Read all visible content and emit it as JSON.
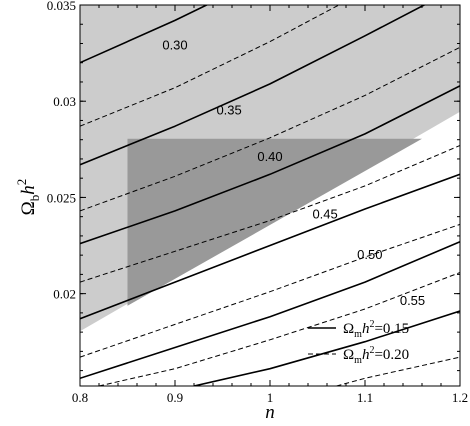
{
  "chart_data": {
    "type": "line",
    "xlabel": "n",
    "ylabel": "Ωbh2",
    "xlim": [
      0.8,
      1.2
    ],
    "ylim": [
      0.0152,
      0.035
    ],
    "x_ticks": [
      {
        "value": 0.8,
        "label": "0.8"
      },
      {
        "value": 0.9,
        "label": "0.9"
      },
      {
        "value": 1.0,
        "label": "1"
      },
      {
        "value": 1.1,
        "label": "1.1"
      },
      {
        "value": 1.2,
        "label": "1.2"
      }
    ],
    "y_ticks": [
      {
        "value": 0.02,
        "label": "0.02"
      },
      {
        "value": 0.025,
        "label": "0.025"
      },
      {
        "value": 0.03,
        "label": "0.03"
      },
      {
        "value": 0.035,
        "label": "0.035"
      }
    ],
    "regions": [
      {
        "name": "light-excluded-region",
        "color": "#cccccc",
        "points": [
          [
            0.8,
            0.035
          ],
          [
            1.2,
            0.035
          ],
          [
            1.2,
            0.02945
          ],
          [
            0.8,
            0.01805
          ]
        ]
      },
      {
        "name": "dark-excluded-region",
        "color": "#999999",
        "points": [
          [
            0.85,
            0.02805
          ],
          [
            1.16,
            0.02805
          ],
          [
            0.85,
            0.01937
          ]
        ]
      }
    ],
    "series": [
      {
        "name": "Ωmh2=0.15",
        "style": "solid",
        "values": [
          [
            0.8,
            0.032
          ],
          [
            0.9,
            0.0342
          ],
          [
            0.95,
            0.0354
          ]
        ]
      },
      {
        "name": "Ωmh2=0.20",
        "style": "dashed",
        "values": [
          [
            0.8,
            0.0287
          ],
          [
            0.9,
            0.0307
          ],
          [
            1.0,
            0.0331
          ],
          [
            1.08,
            0.0352
          ]
        ]
      },
      {
        "name": "Ωmh2=0.15",
        "style": "solid",
        "values": [
          [
            0.8,
            0.0267
          ],
          [
            0.9,
            0.0287
          ],
          [
            1.0,
            0.0309
          ],
          [
            1.1,
            0.0334
          ],
          [
            1.17,
            0.0352
          ]
        ]
      },
      {
        "name": "Ωmh2=0.20",
        "style": "dashed",
        "values": [
          [
            0.8,
            0.0243
          ],
          [
            0.9,
            0.0261
          ],
          [
            1.0,
            0.0281
          ],
          [
            1.1,
            0.0303
          ],
          [
            1.2,
            0.0328
          ]
        ]
      },
      {
        "name": "Ωmh2=0.15",
        "style": "solid",
        "values": [
          [
            0.8,
            0.0226
          ],
          [
            0.9,
            0.0243
          ],
          [
            1.0,
            0.0262
          ],
          [
            1.1,
            0.0283
          ],
          [
            1.2,
            0.0308
          ]
        ]
      },
      {
        "name": "Ωmh2=0.20",
        "style": "dashed",
        "values": [
          [
            0.8,
            0.0206
          ],
          [
            0.9,
            0.0222
          ],
          [
            1.0,
            0.0238
          ],
          [
            1.1,
            0.0256
          ],
          [
            1.2,
            0.0277
          ]
        ]
      },
      {
        "name": "Ωmh2=0.15",
        "style": "solid",
        "values": [
          [
            0.8,
            0.0187
          ],
          [
            0.9,
            0.0206
          ],
          [
            1.0,
            0.0225
          ],
          [
            1.1,
            0.0244
          ],
          [
            1.2,
            0.0262
          ]
        ]
      },
      {
        "name": "Ωmh2=0.20",
        "style": "dashed",
        "values": [
          [
            0.8,
            0.0167
          ],
          [
            0.9,
            0.0184
          ],
          [
            1.0,
            0.0201
          ],
          [
            1.1,
            0.0219
          ],
          [
            1.2,
            0.0236
          ]
        ]
      },
      {
        "name": "Ωmh2=0.15",
        "style": "solid",
        "values": [
          [
            0.8,
            0.0156
          ],
          [
            0.9,
            0.0172
          ],
          [
            1.0,
            0.0188
          ],
          [
            1.1,
            0.0206
          ],
          [
            1.2,
            0.0227
          ]
        ]
      },
      {
        "name": "Ωmh2=0.20",
        "style": "dashed",
        "values": [
          [
            0.82,
            0.0152
          ],
          [
            0.9,
            0.0161
          ],
          [
            1.0,
            0.0176
          ],
          [
            1.1,
            0.0192
          ],
          [
            1.2,
            0.0211
          ]
        ]
      },
      {
        "name": "Ωmh2=0.15",
        "style": "solid",
        "values": [
          [
            0.92,
            0.0152
          ],
          [
            1.0,
            0.0161
          ],
          [
            1.1,
            0.0175
          ],
          [
            1.2,
            0.0191
          ]
        ]
      },
      {
        "name": "Ωmh2=0.20",
        "style": "dashed",
        "values": [
          [
            1.07,
            0.0152
          ],
          [
            1.1,
            0.0156
          ],
          [
            1.2,
            0.0167
          ]
        ]
      }
    ],
    "annotations": [
      {
        "text": "0.30",
        "x": 0.9,
        "y": 0.0327
      },
      {
        "text": "0.35",
        "x": 0.957,
        "y": 0.0293
      },
      {
        "text": "0.40",
        "x": 1.0,
        "y": 0.0269
      },
      {
        "text": "0.45",
        "x": 1.058,
        "y": 0.0239
      },
      {
        "text": "0.50",
        "x": 1.105,
        "y": 0.0218
      },
      {
        "text": "0.55",
        "x": 1.15,
        "y": 0.0194
      }
    ],
    "legend": {
      "position": "bottom-right",
      "entries": [
        {
          "label_main": "Ω",
          "label_sub": "m",
          "label_mid": "h",
          "label_sup": "2",
          "label_end": "=0.15",
          "style": "solid"
        },
        {
          "label_main": "Ω",
          "label_sub": "m",
          "label_mid": "h",
          "label_sup": "2",
          "label_end": "=0.20",
          "style": "dashed"
        }
      ]
    },
    "axis_labels": {
      "x": "n",
      "y_main": "Ω",
      "y_sub": "b",
      "y_mid": "h",
      "y_sup": "2"
    }
  }
}
